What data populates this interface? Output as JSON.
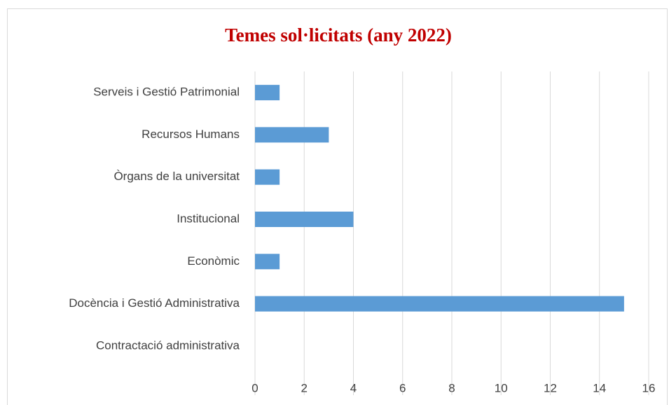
{
  "chart_data": {
    "type": "bar",
    "orientation": "horizontal",
    "title": "Temes sol·licitats (any 2022)",
    "categories": [
      "Serveis i Gestió Patrimonial",
      "Recursos Humans",
      "Òrgans de la universitat",
      "Institucional",
      "Econòmic",
      "Docència i Gestió Administrativa",
      "Contractació administrativa"
    ],
    "values": [
      1,
      3,
      1,
      4,
      1,
      15,
      0
    ],
    "color": "#5b9bd5",
    "xlim": [
      0,
      16
    ],
    "xticks": [
      0,
      2,
      4,
      6,
      8,
      10,
      12,
      14,
      16
    ],
    "grid": true
  }
}
